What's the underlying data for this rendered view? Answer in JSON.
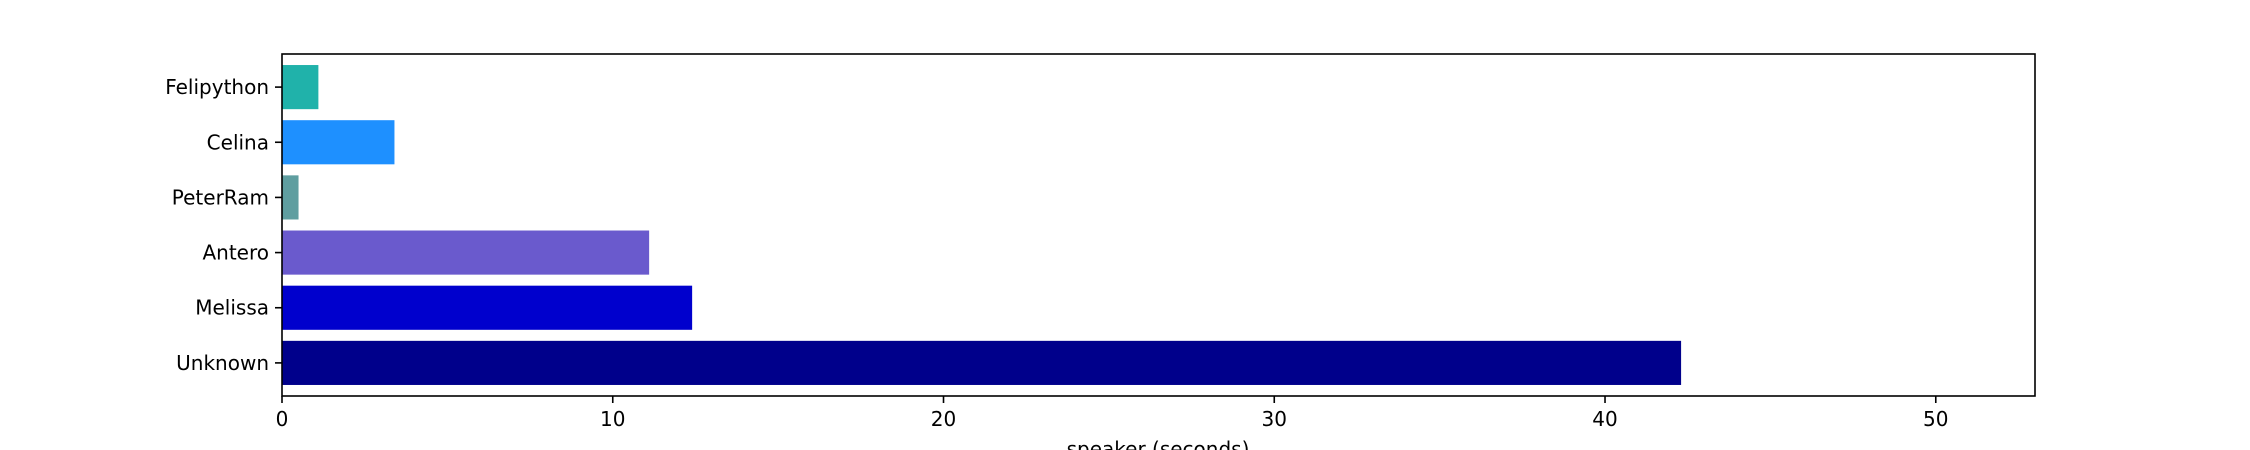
{
  "chart_data": {
    "type": "bar",
    "orientation": "horizontal",
    "categories": [
      "Unknown",
      "Melissa",
      "Antero",
      "PeterRam",
      "Celina",
      "Felipython"
    ],
    "values": [
      42.3,
      12.4,
      11.1,
      0.5,
      3.4,
      1.1
    ],
    "colors": [
      "#00008b",
      "#0000cd",
      "#6a5acd",
      "#5f9ea0",
      "#1e90ff",
      "#20b2aa"
    ],
    "title": "",
    "xlabel": "speaker (seconds)",
    "ylabel": "",
    "xlim": [
      0,
      53
    ],
    "xticks": [
      0,
      10,
      20,
      30,
      40,
      50
    ],
    "grid": false,
    "legend": "none"
  }
}
